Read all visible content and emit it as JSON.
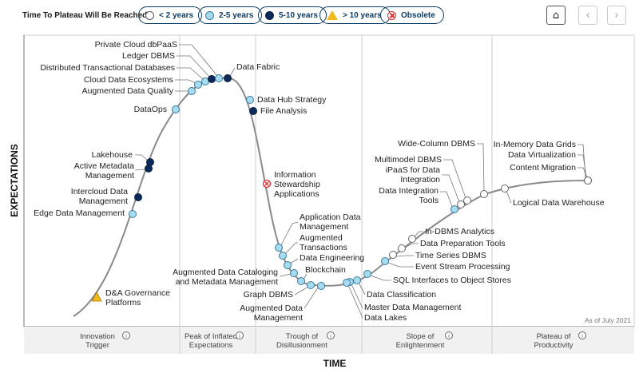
{
  "legend": {
    "title": "Time To Plateau Will Be Reached:",
    "items": [
      {
        "key": "lt2",
        "label": "< 2 years",
        "icon": "white-circle-icon"
      },
      {
        "key": "2to5",
        "label": "2-5 years",
        "icon": "light-blue-circle-icon"
      },
      {
        "key": "5to10",
        "label": "5-10 years",
        "icon": "navy-circle-icon"
      },
      {
        "key": "gt10",
        "label": "> 10 years",
        "icon": "yellow-triangle-icon"
      },
      {
        "key": "obsolete",
        "label": "Obsolete",
        "icon": "red-x-circle-icon"
      }
    ]
  },
  "nav": {
    "home": "⌂",
    "prev": "‹",
    "next": "›"
  },
  "colors": {
    "lt2": "#ffffff",
    "2to5": "#a6dcef",
    "5to10": "#0b2a5b",
    "gt10": "#f3b81e",
    "obsolete": "#d62b2b",
    "curve": "#8a8a8a",
    "accent": "#0c3c60"
  },
  "chart_data": {
    "type": "hype-cycle",
    "x_axis_label": "TIME",
    "y_axis_label": "EXPECTATIONS",
    "as_of": "As of July 2021",
    "phases": [
      {
        "id": "innovation-trigger",
        "label_lines": [
          "Innovation",
          "Trigger"
        ]
      },
      {
        "id": "peak",
        "label_lines": [
          "Peak of Inflated",
          "Expectations"
        ]
      },
      {
        "id": "trough",
        "label_lines": [
          "Trough of",
          "Disillusionment"
        ]
      },
      {
        "id": "slope",
        "label_lines": [
          "Slope of",
          "Enlightenment"
        ]
      },
      {
        "id": "plateau",
        "label_lines": [
          "Plateau of",
          "Productivity"
        ]
      }
    ],
    "technologies": [
      {
        "name": "D&A Governance Platforms",
        "status": "gt10"
      },
      {
        "name": "Edge Data Management",
        "status": "2to5"
      },
      {
        "name": "Intercloud Data Management",
        "status": "5to10"
      },
      {
        "name": "Active Metadata Management",
        "status": "5to10"
      },
      {
        "name": "Lakehouse",
        "status": "5to10"
      },
      {
        "name": "DataOps",
        "status": "2to5"
      },
      {
        "name": "Augmented Data Quality",
        "status": "2to5"
      },
      {
        "name": "Cloud Data Ecosystems",
        "status": "2to5"
      },
      {
        "name": "Distributed Transactional Databases",
        "status": "2to5"
      },
      {
        "name": "Ledger DBMS",
        "status": "5to10"
      },
      {
        "name": "Private Cloud dbPaaS",
        "status": "2to5"
      },
      {
        "name": "Data Fabric",
        "status": "5to10"
      },
      {
        "name": "Data Hub Strategy",
        "status": "2to5"
      },
      {
        "name": "File Analysis",
        "status": "5to10"
      },
      {
        "name": "Information Stewardship Applications",
        "status": "obsolete"
      },
      {
        "name": "Application Data Management",
        "status": "2to5"
      },
      {
        "name": "Augmented Transactions",
        "status": "2to5"
      },
      {
        "name": "Data Engineering",
        "status": "2to5"
      },
      {
        "name": "Augmented Data Cataloging and Metadata Management",
        "status": "2to5"
      },
      {
        "name": "Blockchain",
        "status": "2to5"
      },
      {
        "name": "Graph DBMS",
        "status": "2to5"
      },
      {
        "name": "Augmented Data Management",
        "status": "2to5"
      },
      {
        "name": "Data Classification",
        "status": "2to5"
      },
      {
        "name": "Master Data Management",
        "status": "2to5"
      },
      {
        "name": "Data Lakes",
        "status": "2to5"
      },
      {
        "name": "SQL Interfaces to Object Stores",
        "status": "2to5"
      },
      {
        "name": "Event Stream Processing",
        "status": "2to5"
      },
      {
        "name": "Time Series DBMS",
        "status": "lt2"
      },
      {
        "name": "Data Preparation Tools",
        "status": "lt2"
      },
      {
        "name": "In-DBMS Analytics",
        "status": "lt2"
      },
      {
        "name": "Data Integration Tools",
        "status": "2to5"
      },
      {
        "name": "iPaaS for Data Integration",
        "status": "lt2"
      },
      {
        "name": "Multimodel DBMS",
        "status": "lt2"
      },
      {
        "name": "Wide-Column DBMS",
        "status": "lt2"
      },
      {
        "name": "Logical Data Warehouse",
        "status": "lt2"
      },
      {
        "name": "In-Memory Data Grids",
        "status": "lt2"
      },
      {
        "name": "Data Virtualization",
        "status": "lt2"
      },
      {
        "name": "Content Migration",
        "status": "lt2"
      }
    ]
  }
}
